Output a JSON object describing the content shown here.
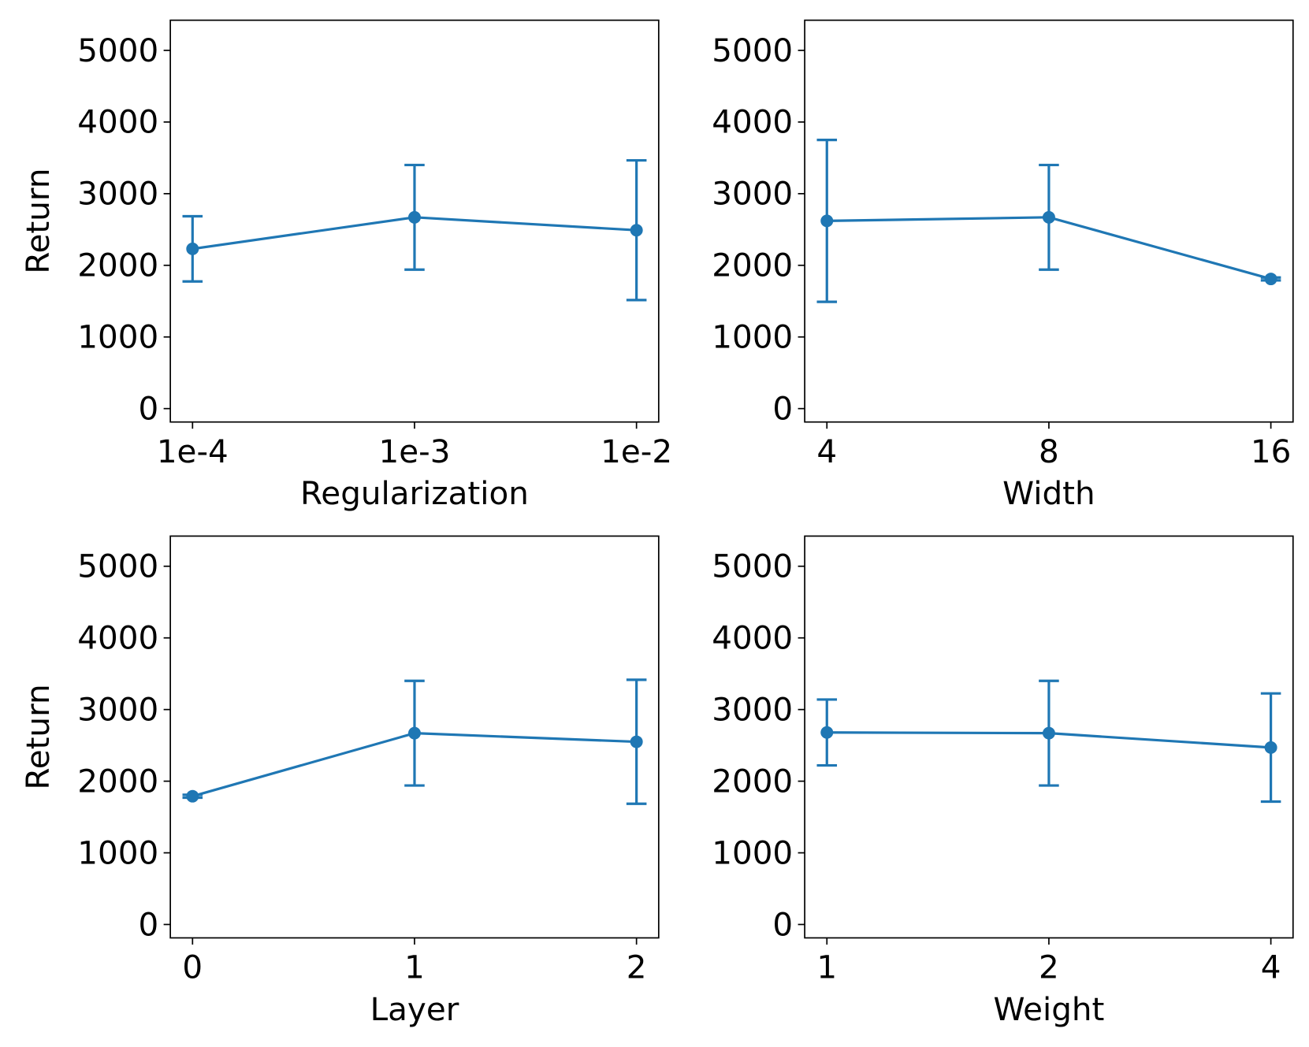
{
  "chart_data": [
    {
      "type": "line",
      "x_label": "Regularization",
      "y_label": "Return",
      "categories": [
        "1e-4",
        "1e-3",
        "1e-2"
      ],
      "values": [
        2230,
        2670,
        2490
      ],
      "errors": [
        455,
        730,
        975
      ],
      "color": "#1f77b4",
      "ylim": [
        -187,
        5421
      ],
      "yticks": [
        0,
        1000,
        2000,
        3000,
        4000,
        5000
      ]
    },
    {
      "type": "line",
      "x_label": "Width",
      "categories": [
        "4",
        "8",
        "16"
      ],
      "values": [
        2620,
        2670,
        1810
      ],
      "errors": [
        1130,
        730,
        20
      ],
      "color": "#1f77b4",
      "ylim": [
        -187,
        5421
      ],
      "yticks": [
        0,
        1000,
        2000,
        3000,
        4000,
        5000
      ]
    },
    {
      "type": "line",
      "x_label": "Layer",
      "y_label": "Return",
      "categories": [
        "0",
        "1",
        "2"
      ],
      "values": [
        1790,
        2670,
        2550
      ],
      "errors": [
        20,
        730,
        865
      ],
      "color": "#1f77b4",
      "ylim": [
        -187,
        5421
      ],
      "yticks": [
        0,
        1000,
        2000,
        3000,
        4000,
        5000
      ]
    },
    {
      "type": "line",
      "x_label": "Weight",
      "categories": [
        "1",
        "2",
        "4"
      ],
      "values": [
        2680,
        2670,
        2470
      ],
      "errors": [
        460,
        730,
        755
      ],
      "color": "#1f77b4",
      "ylim": [
        -187,
        5421
      ],
      "yticks": [
        0,
        1000,
        2000,
        3000,
        4000,
        5000
      ]
    }
  ]
}
